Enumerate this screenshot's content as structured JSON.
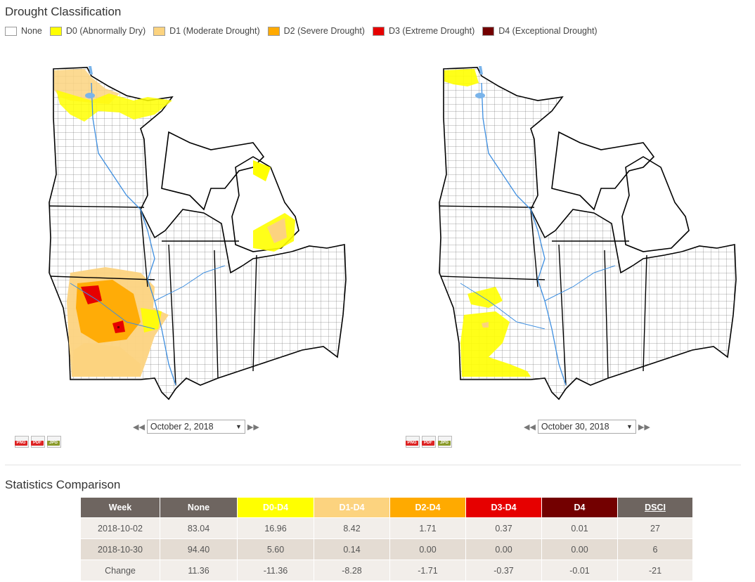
{
  "legend": {
    "title": "Drought Classification",
    "items": [
      {
        "label": "None",
        "color": "#ffffff"
      },
      {
        "label": "D0 (Abnormally Dry)",
        "color": "#ffff00"
      },
      {
        "label": "D1 (Moderate Drought)",
        "color": "#fcd37f"
      },
      {
        "label": "D2 (Severe Drought)",
        "color": "#ffaa00"
      },
      {
        "label": "D3 (Extreme Drought)",
        "color": "#e60000"
      },
      {
        "label": "D4 (Exceptional Drought)",
        "color": "#730000"
      }
    ]
  },
  "maps": {
    "left": {
      "date": "October 2, 2018"
    },
    "right": {
      "date": "October 30, 2018"
    }
  },
  "exports": {
    "png": "PNG",
    "pdf": "PDF",
    "jpg": "JPG"
  },
  "stats": {
    "title": "Statistics Comparison",
    "headers": [
      "Week",
      "None",
      "D0-D4",
      "D1-D4",
      "D2-D4",
      "D3-D4",
      "D4",
      "DSCI"
    ],
    "rows": [
      [
        "2018-10-02",
        "83.04",
        "16.96",
        "8.42",
        "1.71",
        "0.37",
        "0.01",
        "27"
      ],
      [
        "2018-10-30",
        "94.40",
        "5.60",
        "0.14",
        "0.00",
        "0.00",
        "0.00",
        "6"
      ],
      [
        "Change",
        "11.36",
        "-11.36",
        "-8.28",
        "-1.71",
        "-0.37",
        "-0.01",
        "-21"
      ]
    ]
  }
}
